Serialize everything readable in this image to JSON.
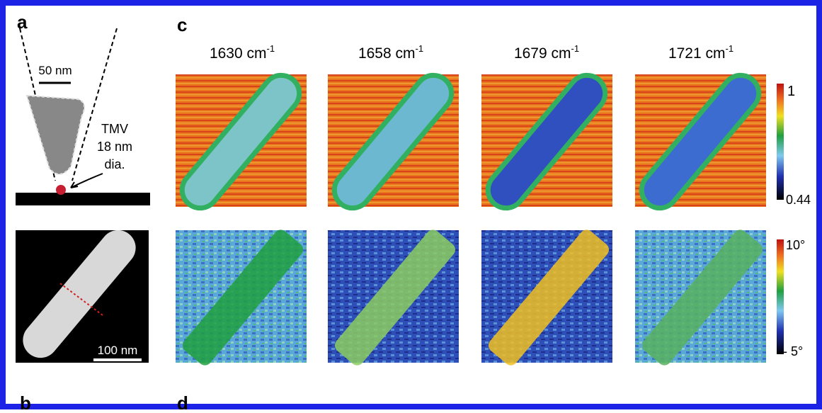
{
  "panel_labels": [
    "a",
    "c",
    "b",
    "d"
  ],
  "schematic": {
    "tip_scale": "50 nm",
    "sample_lines": [
      "TMV",
      "18 nm",
      "dia."
    ]
  },
  "topography": {
    "scale": "100 nm"
  },
  "columns": [
    {
      "number": "1630 cm",
      "superscript": "-1"
    },
    {
      "number": "1658 cm",
      "superscript": "-1"
    },
    {
      "number": "1679 cm",
      "superscript": "-1"
    },
    {
      "number": "1721 cm",
      "superscript": "-1"
    }
  ],
  "amplitude_colorbar": {
    "max": "1",
    "min": "0.44"
  },
  "phase_colorbar": {
    "max": "10°",
    "min": "- 5°"
  }
}
